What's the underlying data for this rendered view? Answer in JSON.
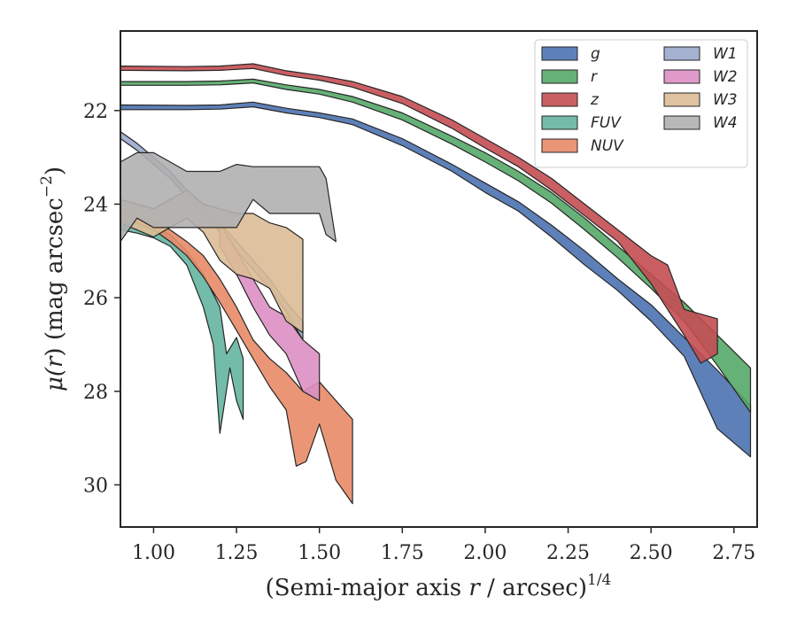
{
  "chart_data": {
    "type": "area",
    "x_axis": {
      "label_main": "(Semi-major axis ",
      "label_var": "r",
      "label_mid": " / arcsec)",
      "label_sup": "1/4",
      "xlim": [
        0.9,
        2.82
      ],
      "ticks": [
        1.0,
        1.25,
        1.5,
        1.75,
        2.0,
        2.25,
        2.5,
        2.75
      ],
      "tick_labels": [
        "1.00",
        "1.25",
        "1.50",
        "1.75",
        "2.00",
        "2.25",
        "2.50",
        "2.75"
      ]
    },
    "y_axis": {
      "label_mu": "μ(",
      "label_var": "r",
      "label_unit": ") (mag arcsec",
      "label_sup": "−2",
      "label_close": ")",
      "ylim": [
        30.9,
        20.3
      ],
      "inverted": true,
      "ticks": [
        22,
        24,
        26,
        28,
        30
      ],
      "tick_labels": [
        "22",
        "24",
        "26",
        "28",
        "30"
      ]
    },
    "grid": false,
    "legend_placement": "top-right",
    "series": [
      {
        "name": "g",
        "color": "#4c72b0",
        "upper": [
          [
            0.9,
            21.88
          ],
          [
            1.1,
            21.89
          ],
          [
            1.2,
            21.88
          ],
          [
            1.3,
            21.82
          ],
          [
            1.4,
            21.95
          ],
          [
            1.5,
            22.05
          ],
          [
            1.6,
            22.18
          ],
          [
            1.75,
            22.6
          ],
          [
            1.9,
            23.15
          ],
          [
            2.0,
            23.55
          ],
          [
            2.1,
            23.95
          ],
          [
            2.2,
            24.45
          ],
          [
            2.3,
            25.0
          ],
          [
            2.4,
            25.6
          ],
          [
            2.5,
            26.15
          ],
          [
            2.6,
            26.85
          ],
          [
            2.7,
            27.55
          ],
          [
            2.8,
            28.3
          ]
        ],
        "lower": [
          [
            0.9,
            21.98
          ],
          [
            1.1,
            21.98
          ],
          [
            1.2,
            21.97
          ],
          [
            1.3,
            21.92
          ],
          [
            1.4,
            22.05
          ],
          [
            1.5,
            22.15
          ],
          [
            1.6,
            22.3
          ],
          [
            1.75,
            22.75
          ],
          [
            1.9,
            23.3
          ],
          [
            2.0,
            23.75
          ],
          [
            2.1,
            24.15
          ],
          [
            2.2,
            24.7
          ],
          [
            2.3,
            25.3
          ],
          [
            2.4,
            25.85
          ],
          [
            2.5,
            26.5
          ],
          [
            2.6,
            27.25
          ],
          [
            2.7,
            28.8
          ],
          [
            2.8,
            29.4
          ]
        ]
      },
      {
        "name": "r",
        "color": "#55a868",
        "upper": [
          [
            0.9,
            21.38
          ],
          [
            1.1,
            21.38
          ],
          [
            1.2,
            21.37
          ],
          [
            1.3,
            21.33
          ],
          [
            1.4,
            21.45
          ],
          [
            1.5,
            21.55
          ],
          [
            1.6,
            21.7
          ],
          [
            1.75,
            22.05
          ],
          [
            1.9,
            22.55
          ],
          [
            2.0,
            22.9
          ],
          [
            2.1,
            23.3
          ],
          [
            2.2,
            23.75
          ],
          [
            2.3,
            24.3
          ],
          [
            2.4,
            24.9
          ],
          [
            2.5,
            25.5
          ],
          [
            2.6,
            26.1
          ],
          [
            2.7,
            26.8
          ],
          [
            2.8,
            27.5
          ]
        ],
        "lower": [
          [
            0.9,
            21.46
          ],
          [
            1.1,
            21.46
          ],
          [
            1.2,
            21.45
          ],
          [
            1.3,
            21.41
          ],
          [
            1.4,
            21.55
          ],
          [
            1.5,
            21.65
          ],
          [
            1.6,
            21.82
          ],
          [
            1.75,
            22.2
          ],
          [
            1.9,
            22.72
          ],
          [
            2.0,
            23.1
          ],
          [
            2.1,
            23.5
          ],
          [
            2.2,
            23.98
          ],
          [
            2.3,
            24.55
          ],
          [
            2.4,
            25.15
          ],
          [
            2.5,
            25.8
          ],
          [
            2.6,
            26.5
          ],
          [
            2.7,
            27.45
          ],
          [
            2.8,
            28.45
          ]
        ]
      },
      {
        "name": "z",
        "color": "#c44e52",
        "upper": [
          [
            0.9,
            21.05
          ],
          [
            1.1,
            21.06
          ],
          [
            1.2,
            21.05
          ],
          [
            1.3,
            21.0
          ],
          [
            1.4,
            21.15
          ],
          [
            1.5,
            21.25
          ],
          [
            1.6,
            21.38
          ],
          [
            1.75,
            21.7
          ],
          [
            1.9,
            22.2
          ],
          [
            2.0,
            22.6
          ],
          [
            2.1,
            23.0
          ],
          [
            2.2,
            23.45
          ],
          [
            2.3,
            24.0
          ],
          [
            2.4,
            24.55
          ],
          [
            2.5,
            25.1
          ],
          [
            2.55,
            25.3
          ],
          [
            2.6,
            26.25
          ],
          [
            2.7,
            26.45
          ]
        ],
        "lower": [
          [
            0.9,
            21.14
          ],
          [
            1.1,
            21.15
          ],
          [
            1.2,
            21.14
          ],
          [
            1.3,
            21.1
          ],
          [
            1.4,
            21.25
          ],
          [
            1.5,
            21.35
          ],
          [
            1.6,
            21.5
          ],
          [
            1.75,
            21.85
          ],
          [
            1.9,
            22.38
          ],
          [
            2.0,
            22.8
          ],
          [
            2.1,
            23.2
          ],
          [
            2.2,
            23.7
          ],
          [
            2.3,
            24.25
          ],
          [
            2.4,
            24.8
          ],
          [
            2.5,
            25.7
          ],
          [
            2.6,
            26.8
          ],
          [
            2.65,
            27.4
          ],
          [
            2.7,
            27.2
          ]
        ]
      },
      {
        "name": "FUV",
        "color": "#64b5a0",
        "upper": [
          [
            0.9,
            24.35
          ],
          [
            0.95,
            24.4
          ],
          [
            1.0,
            24.5
          ],
          [
            1.05,
            24.65
          ],
          [
            1.1,
            25.0
          ],
          [
            1.15,
            25.5
          ],
          [
            1.2,
            26.2
          ],
          [
            1.22,
            27.2
          ],
          [
            1.25,
            26.85
          ],
          [
            1.27,
            27.3
          ]
        ],
        "lower": [
          [
            0.9,
            24.55
          ],
          [
            0.95,
            24.62
          ],
          [
            1.0,
            24.72
          ],
          [
            1.05,
            24.9
          ],
          [
            1.1,
            25.3
          ],
          [
            1.15,
            26.2
          ],
          [
            1.18,
            27.0
          ],
          [
            1.2,
            28.9
          ],
          [
            1.23,
            27.5
          ],
          [
            1.25,
            28.2
          ],
          [
            1.27,
            28.6
          ]
        ]
      },
      {
        "name": "NUV",
        "color": "#e88b67",
        "upper": [
          [
            0.9,
            24.1
          ],
          [
            0.95,
            24.2
          ],
          [
            1.0,
            24.35
          ],
          [
            1.05,
            24.55
          ],
          [
            1.1,
            24.8
          ],
          [
            1.15,
            25.1
          ],
          [
            1.2,
            25.6
          ],
          [
            1.25,
            26.2
          ],
          [
            1.3,
            26.9
          ],
          [
            1.35,
            27.3
          ],
          [
            1.4,
            27.6
          ],
          [
            1.45,
            28.0
          ],
          [
            1.5,
            27.8
          ],
          [
            1.55,
            28.2
          ],
          [
            1.6,
            28.6
          ]
        ],
        "lower": [
          [
            0.9,
            24.35
          ],
          [
            0.95,
            24.4
          ],
          [
            1.0,
            24.55
          ],
          [
            1.05,
            24.8
          ],
          [
            1.1,
            25.1
          ],
          [
            1.15,
            25.55
          ],
          [
            1.2,
            26.1
          ],
          [
            1.25,
            26.7
          ],
          [
            1.3,
            27.3
          ],
          [
            1.35,
            27.9
          ],
          [
            1.4,
            28.4
          ],
          [
            1.43,
            29.6
          ],
          [
            1.46,
            29.5
          ],
          [
            1.5,
            28.7
          ],
          [
            1.55,
            29.9
          ],
          [
            1.6,
            30.4
          ]
        ]
      },
      {
        "name": "W1",
        "color": "#9aa9cc",
        "upper": [
          [
            0.9,
            22.45
          ],
          [
            0.95,
            22.7
          ],
          [
            1.0,
            23.0
          ],
          [
            1.05,
            23.3
          ],
          [
            1.1,
            23.7
          ],
          [
            1.15,
            24.0
          ],
          [
            1.2,
            24.4
          ],
          [
            1.25,
            24.8
          ],
          [
            1.3,
            25.2
          ],
          [
            1.35,
            25.6
          ],
          [
            1.4,
            26.1
          ],
          [
            1.45,
            26.5
          ]
        ],
        "lower": [
          [
            0.9,
            22.6
          ],
          [
            0.95,
            22.85
          ],
          [
            1.0,
            23.15
          ],
          [
            1.05,
            23.45
          ],
          [
            1.1,
            23.85
          ],
          [
            1.15,
            24.2
          ],
          [
            1.2,
            24.6
          ],
          [
            1.25,
            25.0
          ],
          [
            1.3,
            25.4
          ],
          [
            1.35,
            25.8
          ],
          [
            1.4,
            26.3
          ],
          [
            1.45,
            26.9
          ]
        ]
      },
      {
        "name": "W2",
        "color": "#dd8fc4",
        "upper": [
          [
            1.2,
            24.4
          ],
          [
            1.25,
            25.0
          ],
          [
            1.3,
            25.6
          ],
          [
            1.35,
            26.2
          ],
          [
            1.4,
            26.4
          ],
          [
            1.45,
            26.9
          ],
          [
            1.5,
            27.2
          ]
        ],
        "lower": [
          [
            1.2,
            24.9
          ],
          [
            1.25,
            25.5
          ],
          [
            1.3,
            26.2
          ],
          [
            1.35,
            26.8
          ],
          [
            1.4,
            27.2
          ],
          [
            1.45,
            28.0
          ],
          [
            1.5,
            28.2
          ]
        ]
      },
      {
        "name": "W3",
        "color": "#dcbc96",
        "upper": [
          [
            0.9,
            23.9
          ],
          [
            1.0,
            24.1
          ],
          [
            1.1,
            23.7
          ],
          [
            1.15,
            24.0
          ],
          [
            1.2,
            24.1
          ],
          [
            1.25,
            24.2
          ],
          [
            1.3,
            24.2
          ],
          [
            1.35,
            24.4
          ],
          [
            1.4,
            24.5
          ],
          [
            1.45,
            24.75
          ]
        ],
        "lower": [
          [
            0.9,
            24.4
          ],
          [
            1.0,
            24.7
          ],
          [
            1.1,
            24.3
          ],
          [
            1.15,
            24.6
          ],
          [
            1.2,
            25.2
          ],
          [
            1.25,
            25.5
          ],
          [
            1.3,
            25.6
          ],
          [
            1.35,
            25.8
          ],
          [
            1.4,
            26.5
          ],
          [
            1.45,
            26.75
          ]
        ]
      },
      {
        "name": "W4",
        "color": "#b0b0b0",
        "upper": [
          [
            0.9,
            23.1
          ],
          [
            0.95,
            22.9
          ],
          [
            1.0,
            22.9
          ],
          [
            1.05,
            23.1
          ],
          [
            1.1,
            23.3
          ],
          [
            1.15,
            23.3
          ],
          [
            1.2,
            23.3
          ],
          [
            1.25,
            23.15
          ],
          [
            1.3,
            23.2
          ],
          [
            1.35,
            23.2
          ],
          [
            1.4,
            23.2
          ],
          [
            1.45,
            23.2
          ],
          [
            1.5,
            23.2
          ],
          [
            1.52,
            23.45
          ],
          [
            1.55,
            24.8
          ]
        ],
        "lower": [
          [
            0.9,
            24.8
          ],
          [
            0.95,
            24.3
          ],
          [
            1.0,
            24.5
          ],
          [
            1.05,
            24.5
          ],
          [
            1.1,
            24.5
          ],
          [
            1.15,
            24.5
          ],
          [
            1.2,
            24.5
          ],
          [
            1.25,
            24.5
          ],
          [
            1.3,
            23.9
          ],
          [
            1.35,
            24.2
          ],
          [
            1.4,
            24.2
          ],
          [
            1.45,
            24.2
          ],
          [
            1.5,
            24.2
          ],
          [
            1.52,
            24.65
          ],
          [
            1.55,
            24.8
          ]
        ]
      }
    ]
  }
}
